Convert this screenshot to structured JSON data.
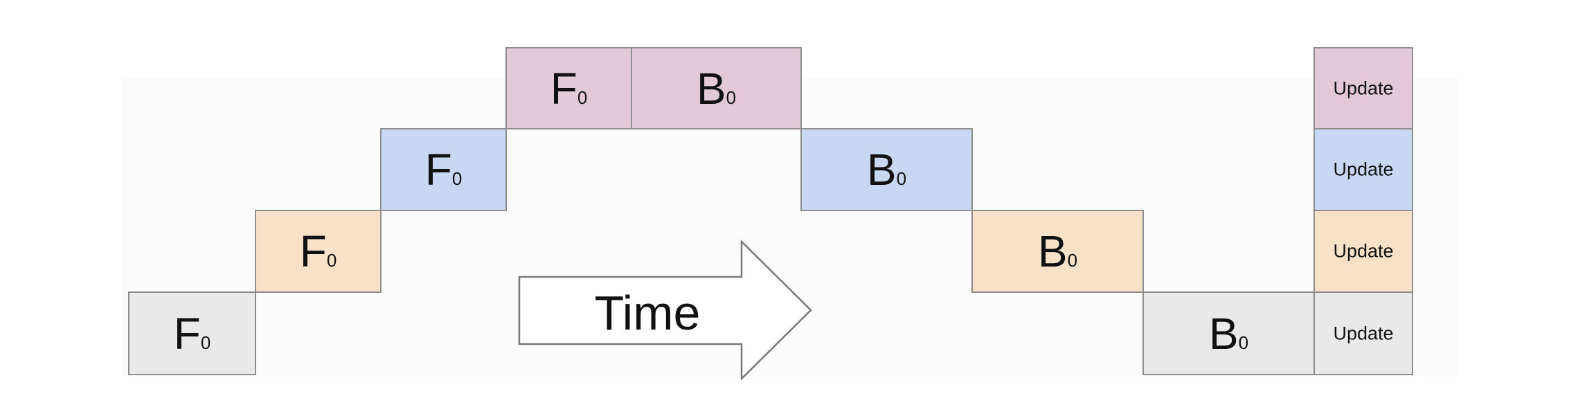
{
  "colors": {
    "stage0": "#e9e9e9",
    "stage1": "#f7e2c9",
    "stage2": "#c8d8f3",
    "stage3": "#e3c9d8",
    "border": "#8d8d8d",
    "arrow_fill": "#ffffff",
    "arrow_stroke": "#777777"
  },
  "forward": [
    {
      "letter": "F",
      "sub": "0",
      "stage": 0
    },
    {
      "letter": "F",
      "sub": "0",
      "stage": 1
    },
    {
      "letter": "F",
      "sub": "0",
      "stage": 2
    },
    {
      "letter": "F",
      "sub": "0",
      "stage": 3
    }
  ],
  "backward": [
    {
      "letter": "B",
      "sub": "0",
      "stage": 3
    },
    {
      "letter": "B",
      "sub": "0",
      "stage": 2
    },
    {
      "letter": "B",
      "sub": "0",
      "stage": 1
    },
    {
      "letter": "B",
      "sub": "0",
      "stage": 0
    }
  ],
  "updates": [
    {
      "label": "Update",
      "stage": 3
    },
    {
      "label": "Update",
      "stage": 2
    },
    {
      "label": "Update",
      "stage": 1
    },
    {
      "label": "Update",
      "stage": 0
    }
  ],
  "time_arrow": {
    "label": "Time",
    "icon": "right-arrow-icon"
  }
}
